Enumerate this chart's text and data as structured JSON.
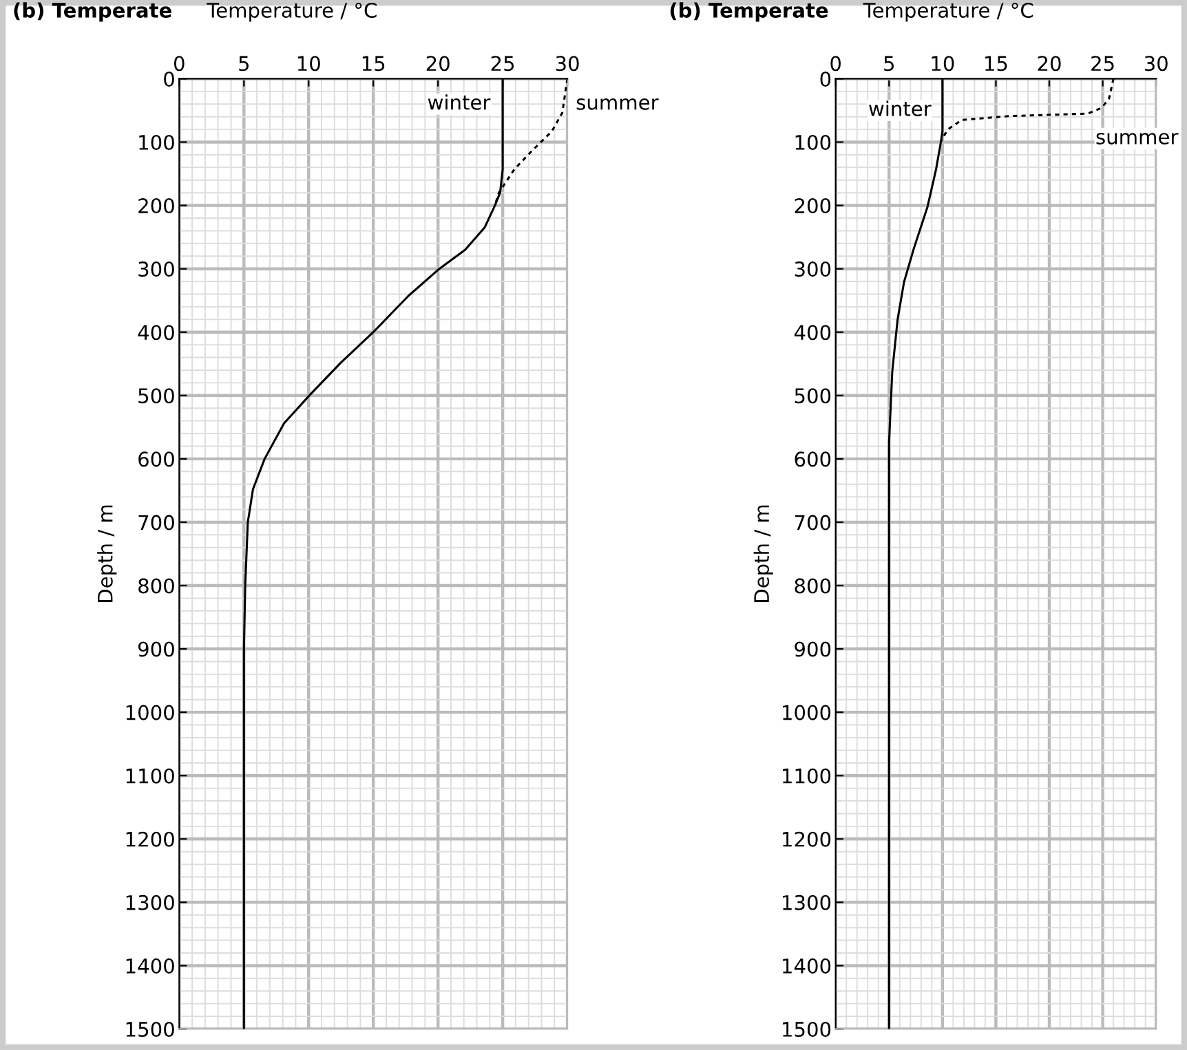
{
  "chart_data": [
    {
      "type": "line",
      "title": "(b) Temperate",
      "xlabel": "Temperature / °C",
      "ylabel": "Depth / m",
      "xlim": [
        0,
        30
      ],
      "xticks": [
        0,
        5,
        10,
        15,
        20,
        25,
        30
      ],
      "ylim": [
        1500,
        0
      ],
      "yticks": [
        0,
        100,
        200,
        300,
        400,
        500,
        600,
        700,
        800,
        900,
        1000,
        1100,
        1200,
        1300,
        1400,
        1500
      ],
      "grid": true,
      "marker": "none",
      "series": [
        {
          "color": "#000000",
          "line_style": "solid",
          "x": [
            25,
            25,
            25,
            24.8,
            24.4,
            23.6,
            22.1,
            20.1,
            17.7,
            15.0,
            12.5,
            10.1,
            8.1,
            6.6,
            5.7,
            5.3,
            5.1,
            5,
            5
          ],
          "values": [
            0,
            100,
            143,
            180,
            200,
            235,
            270,
            300,
            343,
            400,
            448,
            499,
            544,
            600,
            648,
            700,
            800,
            900,
            1500
          ]
        },
        {
          "color": "#000000",
          "line_style": "dashed",
          "x": [
            30,
            29.6,
            28.8,
            27.3,
            25.9,
            24.7,
            24.4
          ],
          "values": [
            0,
            54,
            83,
            113,
            143,
            180,
            200
          ]
        }
      ],
      "annotations": [
        {
          "text": "winter",
          "x": 24.5,
          "y": 40
        },
        {
          "text": "summer",
          "x": 30.2,
          "y": 40
        }
      ]
    },
    {
      "type": "line",
      "title": "(b) Temperate",
      "xlabel": "Temperature / °C",
      "ylabel": "Depth / m",
      "xlim": [
        0,
        30
      ],
      "xticks": [
        0,
        5,
        10,
        15,
        20,
        25,
        30
      ],
      "ylim": [
        1500,
        0
      ],
      "yticks": [
        0,
        100,
        200,
        300,
        400,
        500,
        600,
        700,
        800,
        900,
        1000,
        1100,
        1200,
        1300,
        1400,
        1500
      ],
      "grid": true,
      "marker": "none",
      "series": [
        {
          "color": "#000000",
          "line_style": "solid",
          "x": [
            10,
            10,
            9.85,
            9.4,
            8.6,
            7.3,
            6.4,
            5.8,
            5.3,
            5.0,
            5.0
          ],
          "values": [
            0,
            83,
            100,
            143,
            202,
            269,
            321,
            380,
            462,
            574,
            1500
          ]
        },
        {
          "color": "#000000",
          "line_style": "dashed",
          "x": [
            26.0,
            25.6,
            24.9,
            23.6,
            16.2,
            11.8,
            10.5,
            10.0,
            9.85
          ],
          "values": [
            0,
            31,
            46,
            55,
            59,
            65,
            80,
            94,
            100
          ]
        }
      ],
      "annotations": [
        {
          "text": "winter",
          "x": 9.5,
          "y": 50
        },
        {
          "text": "summer",
          "x": 23.6,
          "y": 55
        }
      ]
    }
  ]
}
